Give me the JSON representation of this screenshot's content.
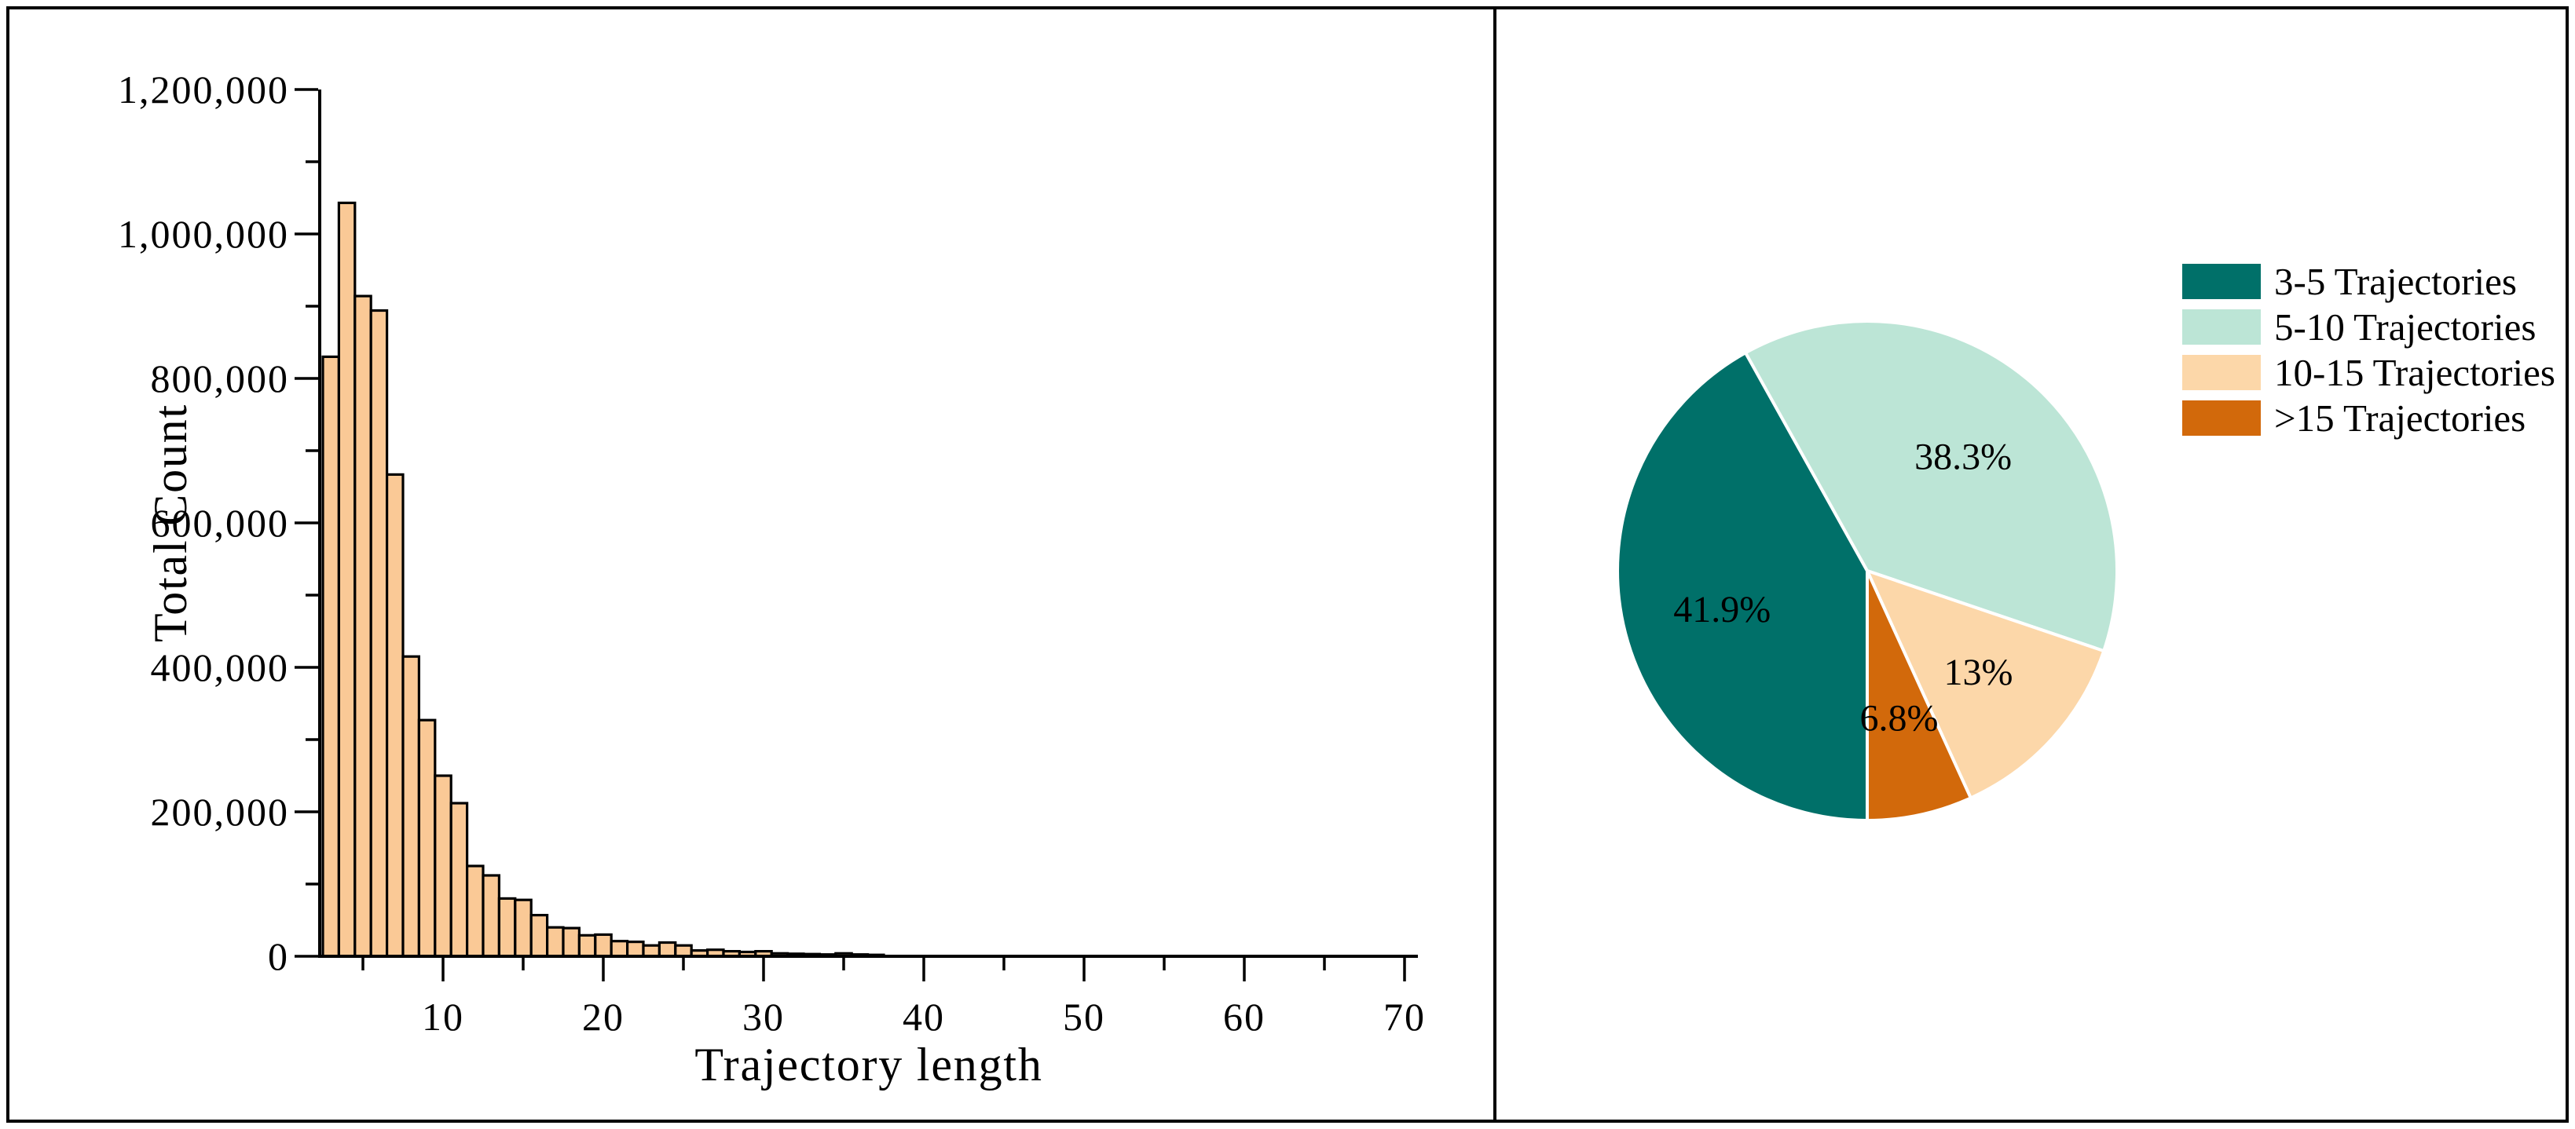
{
  "figure": {
    "background": "#FFFFFF",
    "frame_color": "#000000"
  },
  "chart_data": [
    {
      "type": "bar",
      "panel": "left",
      "title": "",
      "xlabel": "Trajectory length",
      "ylabel": "Total Count",
      "x": [
        3,
        4,
        5,
        6,
        7,
        8,
        9,
        10,
        11,
        12,
        13,
        14,
        15,
        16,
        17,
        18,
        19,
        20,
        21,
        22,
        23,
        24,
        25,
        26,
        27,
        28,
        29,
        30,
        31,
        32,
        33,
        34,
        35,
        36,
        37
      ],
      "values": [
        830000,
        1043000,
        914000,
        894000,
        667000,
        415000,
        327000,
        250000,
        212000,
        125000,
        112000,
        80000,
        78000,
        57000,
        40000,
        39000,
        29000,
        30000,
        21000,
        20000,
        15000,
        19000,
        15000,
        8000,
        9000,
        7000,
        6000,
        7000,
        4000,
        3500,
        3000,
        2500,
        4000,
        2500,
        2000
      ],
      "bar_color": "#FAC996",
      "bar_edge_color": "#000000",
      "xlim": [
        2.3,
        71
      ],
      "ylim": [
        0,
        1200000
      ],
      "x_major_ticks": [
        10,
        20,
        30,
        40,
        50,
        60,
        70
      ],
      "x_minor_ticks": [
        5,
        15,
        25,
        35,
        45,
        55,
        65
      ],
      "y_minor_step": 100000,
      "y_major_step": 200000,
      "y_major_tick_values": [
        0,
        200000,
        400000,
        600000,
        800000,
        1000000,
        1200000
      ],
      "y_major_tick_labels": [
        "0",
        "200,000",
        "400,000",
        "600,000",
        "800,000",
        "1,000,000",
        "1,200,000"
      ],
      "grid": false
    },
    {
      "type": "pie",
      "panel": "right",
      "start_angle_clock_deg": 180,
      "direction": "clockwise",
      "label_distance": 0.6,
      "slice_edge_color": "#FFFFFF",
      "legend_position": "upper right",
      "slices": [
        {
          "label": "3-5 Trajectories",
          "value_pct": 41.9,
          "pct_label": "41.9%",
          "color": "#007069"
        },
        {
          "label": "5-10 Trajectories",
          "value_pct": 38.3,
          "pct_label": "38.3%",
          "color": "#BCE5D6"
        },
        {
          "label": "10-15 Trajectories",
          "value_pct": 13,
          "pct_label": "13%",
          "color": "#FCD7A9"
        },
        {
          "label": ">15 Trajectories",
          "value_pct": 6.8,
          "pct_label": "6.8%",
          "color": "#D2690B"
        }
      ]
    }
  ]
}
